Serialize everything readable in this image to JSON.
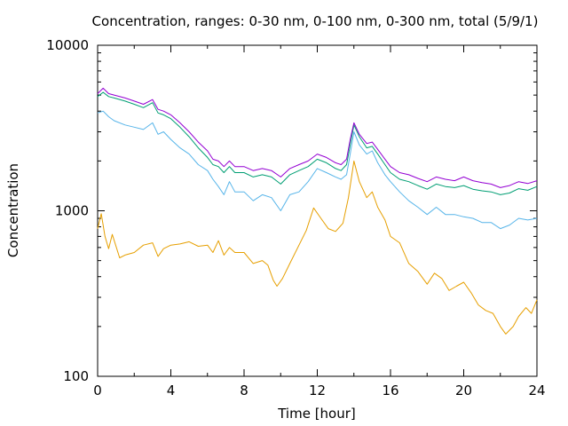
{
  "chart_data": {
    "type": "line",
    "title": "Concentration, ranges: 0-30 nm, 0-100 nm, 0-300 nm, total (5/9/1)",
    "xlabel": "Time [hour]",
    "ylabel": "Concentration",
    "xlim": [
      0,
      24
    ],
    "ylim": [
      100,
      10000
    ],
    "yscale": "log",
    "grid": false,
    "legend": "none",
    "x_ticks": [
      "0",
      "4",
      "8",
      "12",
      "16",
      "20",
      "24"
    ],
    "y_ticks": [
      "100",
      "1000",
      "10000"
    ],
    "series": [
      {
        "color": "#e69f00",
        "x": [
          0,
          0.2,
          0.4,
          0.6,
          0.8,
          1.2,
          1.5,
          2,
          2.5,
          3,
          3.3,
          3.6,
          4,
          4.5,
          5,
          5.5,
          6,
          6.3,
          6.6,
          6.9,
          7.2,
          7.5,
          8,
          8.5,
          9,
          9.3,
          9.6,
          9.8,
          10.1,
          10.5,
          11,
          11.4,
          11.8,
          12.2,
          12.6,
          13,
          13.4,
          13.7,
          14,
          14.3,
          14.7,
          15,
          15.3,
          15.7,
          16,
          16.5,
          17,
          17.5,
          18,
          18.4,
          18.8,
          19.2,
          19.6,
          20,
          20.4,
          20.8,
          21.2,
          21.6,
          22,
          22.3,
          22.7,
          23,
          23.4,
          23.7,
          24
        ],
        "y": [
          780,
          960,
          700,
          590,
          720,
          520,
          540,
          560,
          620,
          640,
          530,
          590,
          620,
          630,
          650,
          610,
          620,
          560,
          660,
          540,
          600,
          560,
          560,
          480,
          500,
          470,
          380,
          350,
          390,
          480,
          620,
          760,
          1040,
          900,
          780,
          750,
          840,
          1200,
          2000,
          1500,
          1200,
          1300,
          1050,
          880,
          700,
          640,
          480,
          430,
          360,
          420,
          390,
          330,
          350,
          370,
          320,
          270,
          250,
          240,
          200,
          180,
          200,
          230,
          260,
          240,
          290
        ]
      },
      {
        "color": "#56b4e9",
        "x": [
          0,
          0.3,
          0.6,
          0.9,
          1.5,
          2,
          2.5,
          3,
          3.3,
          3.6,
          4,
          4.5,
          5,
          5.5,
          6,
          6.3,
          6.6,
          6.9,
          7.2,
          7.5,
          8,
          8.5,
          9,
          9.5,
          10,
          10.5,
          11,
          11.5,
          12,
          12.5,
          13,
          13.3,
          13.6,
          13.8,
          14,
          14.3,
          14.7,
          15,
          15.3,
          15.7,
          16,
          16.5,
          17,
          17.5,
          18,
          18.5,
          19,
          19.5,
          20,
          20.5,
          21,
          21.5,
          22,
          22.5,
          23,
          23.5,
          24
        ],
        "y": [
          3900,
          4000,
          3700,
          3500,
          3300,
          3200,
          3100,
          3400,
          2900,
          3000,
          2700,
          2400,
          2200,
          1900,
          1750,
          1550,
          1400,
          1250,
          1500,
          1300,
          1300,
          1150,
          1250,
          1200,
          1000,
          1250,
          1300,
          1500,
          1800,
          1700,
          1600,
          1550,
          1650,
          2200,
          3000,
          2500,
          2200,
          2300,
          1950,
          1650,
          1500,
          1300,
          1150,
          1050,
          950,
          1050,
          950,
          950,
          920,
          900,
          850,
          850,
          780,
          820,
          900,
          880,
          900
        ]
      },
      {
        "color": "#009e73",
        "x": [
          0,
          0.3,
          0.6,
          0.9,
          1.5,
          2,
          2.5,
          3,
          3.3,
          3.6,
          4,
          4.5,
          5,
          5.5,
          6,
          6.3,
          6.6,
          6.9,
          7.2,
          7.5,
          8,
          8.5,
          9,
          9.5,
          10,
          10.5,
          11,
          11.5,
          12,
          12.5,
          13,
          13.3,
          13.6,
          13.8,
          14,
          14.3,
          14.7,
          15,
          15.3,
          15.7,
          16,
          16.5,
          17,
          17.5,
          18,
          18.5,
          19,
          19.5,
          20,
          20.5,
          21,
          21.5,
          22,
          22.5,
          23,
          23.5,
          24
        ],
        "y": [
          4900,
          5200,
          4900,
          4800,
          4600,
          4400,
          4200,
          4500,
          3900,
          3800,
          3600,
          3200,
          2800,
          2400,
          2100,
          1900,
          1850,
          1700,
          1850,
          1700,
          1700,
          1600,
          1650,
          1600,
          1450,
          1650,
          1750,
          1850,
          2050,
          1950,
          1800,
          1750,
          1900,
          2500,
          3300,
          2800,
          2400,
          2450,
          2200,
          1900,
          1700,
          1550,
          1500,
          1420,
          1350,
          1450,
          1400,
          1380,
          1420,
          1350,
          1320,
          1300,
          1250,
          1280,
          1360,
          1330,
          1400
        ]
      },
      {
        "color": "#9400d3",
        "x": [
          0,
          0.3,
          0.6,
          0.9,
          1.5,
          2,
          2.5,
          3,
          3.3,
          3.6,
          4,
          4.5,
          5,
          5.5,
          6,
          6.3,
          6.6,
          6.9,
          7.2,
          7.5,
          8,
          8.5,
          9,
          9.5,
          10,
          10.5,
          11,
          11.5,
          12,
          12.5,
          13,
          13.3,
          13.6,
          13.8,
          14,
          14.3,
          14.7,
          15,
          15.3,
          15.7,
          16,
          16.5,
          17,
          17.5,
          18,
          18.5,
          19,
          19.5,
          20,
          20.5,
          21,
          21.5,
          22,
          22.5,
          23,
          23.5,
          24
        ],
        "y": [
          5100,
          5500,
          5100,
          5000,
          4800,
          4600,
          4400,
          4700,
          4100,
          4000,
          3800,
          3400,
          3000,
          2600,
          2300,
          2050,
          2000,
          1850,
          2000,
          1850,
          1850,
          1750,
          1800,
          1750,
          1600,
          1800,
          1900,
          2000,
          2200,
          2100,
          1950,
          1900,
          2050,
          2700,
          3400,
          2900,
          2550,
          2600,
          2350,
          2050,
          1850,
          1700,
          1650,
          1570,
          1500,
          1600,
          1550,
          1520,
          1600,
          1520,
          1480,
          1450,
          1380,
          1420,
          1500,
          1460,
          1520
        ]
      }
    ]
  }
}
